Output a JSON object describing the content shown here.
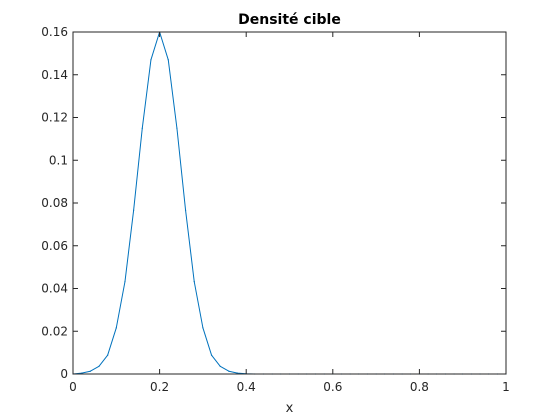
{
  "chart_data": {
    "type": "line",
    "title": "Densité cible",
    "xlabel": "x",
    "ylabel": "",
    "xlim": [
      0,
      1
    ],
    "ylim": [
      0,
      0.16
    ],
    "grid": false,
    "x_ticks": [
      0,
      0.2,
      0.4,
      0.6,
      0.8,
      1
    ],
    "x_tick_labels": [
      "0",
      "0.2",
      "0.4",
      "0.6",
      "0.8",
      "1"
    ],
    "y_ticks": [
      0,
      0.02,
      0.04,
      0.06,
      0.08,
      0.1,
      0.12,
      0.14,
      0.16
    ],
    "y_tick_labels": [
      "0",
      "0.02",
      "0.04",
      "0.06",
      "0.08",
      "0.1",
      "0.12",
      "0.14",
      "0.16"
    ],
    "series": [
      {
        "color": "#0072BD",
        "x": [
          0,
          0.02,
          0.04,
          0.06,
          0.08,
          0.1,
          0.12,
          0.14,
          0.16,
          0.18,
          0.2,
          0.22,
          0.24,
          0.26,
          0.28,
          0.3,
          0.32,
          0.34,
          0.36,
          0.38,
          0.4,
          0.42,
          0.44,
          0.46,
          0.48,
          0.5,
          0.52,
          0.54,
          0.56,
          0.58,
          0.6,
          0.62,
          0.64,
          0.66,
          0.68,
          0.7,
          0.72,
          0.74,
          0.76,
          0.78,
          0.8,
          0.82,
          0.84,
          0.86,
          0.88,
          0.9,
          0.92,
          0.94,
          0.96,
          0.98,
          1
        ],
        "values": [
          0.0,
          0.0004,
          0.0013,
          0.0036,
          0.0088,
          0.0216,
          0.0432,
          0.0766,
          0.115,
          0.147,
          0.16,
          0.147,
          0.115,
          0.0766,
          0.0432,
          0.0216,
          0.0088,
          0.0036,
          0.0013,
          0.0004,
          0.0001,
          0,
          0,
          0,
          0,
          0,
          0,
          0,
          0,
          0,
          0,
          0,
          0,
          0,
          0,
          0,
          0,
          0,
          0,
          0,
          0,
          0,
          0,
          0,
          0,
          0,
          0,
          0,
          0,
          0,
          0
        ]
      }
    ]
  }
}
